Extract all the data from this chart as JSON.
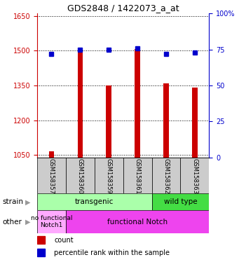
{
  "title": "GDS2848 / 1422073_a_at",
  "samples": [
    "GSM158357",
    "GSM158360",
    "GSM158359",
    "GSM158361",
    "GSM158362",
    "GSM158363"
  ],
  "bar_values": [
    1065,
    1497,
    1350,
    1507,
    1360,
    1340
  ],
  "dot_values": [
    72,
    75,
    75,
    76,
    72,
    73
  ],
  "ylim_left": [
    1040,
    1660
  ],
  "ylim_right": [
    0,
    100
  ],
  "yticks_left": [
    1050,
    1200,
    1350,
    1500,
    1650
  ],
  "ytick_labels_left": [
    "1050",
    "1200",
    "1350",
    "1500",
    "1650"
  ],
  "yticks_right": [
    0,
    25,
    50,
    75,
    100
  ],
  "ytick_labels_right": [
    "0",
    "25",
    "50",
    "75",
    "100%"
  ],
  "bar_color": "#cc0000",
  "dot_color": "#0000cc",
  "bar_width": 0.18,
  "transgenic_color": "#aaffaa",
  "wildtype_color": "#44dd44",
  "no_notch_color": "#ffaaff",
  "func_notch_color": "#ee44ee",
  "sample_bg_color": "#cccccc",
  "legend_count_color": "#cc0000",
  "legend_pct_color": "#0000cc",
  "tick_color_left": "#cc0000",
  "tick_color_right": "#0000cc",
  "title_fontsize": 9,
  "tick_fontsize": 7,
  "label_fontsize": 7.5,
  "strain_fontsize": 7.5,
  "other_fontsize": 7,
  "legend_fontsize": 7
}
